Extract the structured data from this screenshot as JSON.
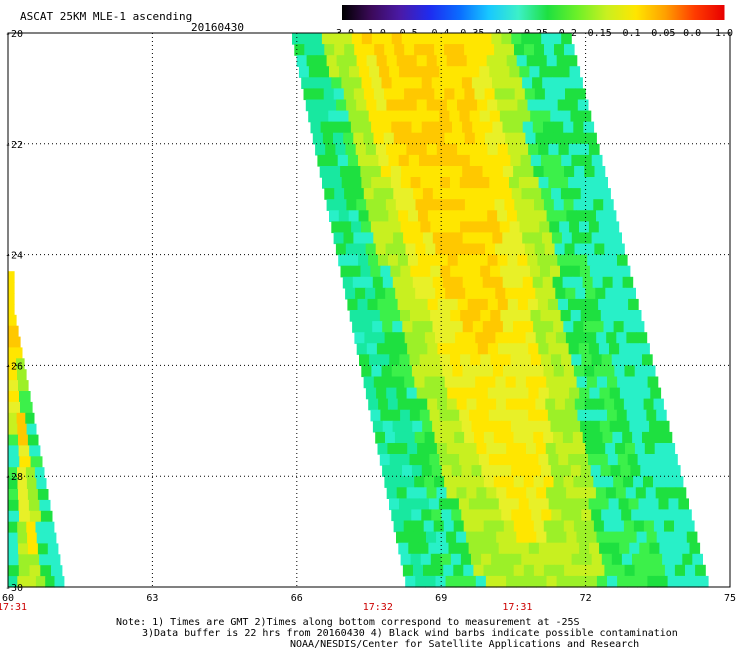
{
  "header": {
    "title": "ASCAT 25KM MLE-1 ascending",
    "date": "20160430"
  },
  "colorbar": {
    "labels": [
      "-3.0",
      "-1.0",
      "-0.5",
      "-0.4",
      "-0.35",
      "-0.3",
      "-0.25",
      "-0.2",
      "-0.15",
      "-0.1",
      "-0.05",
      "0.0",
      "1.0"
    ],
    "colors": [
      "#000000",
      "#3c0a5a",
      "#4a1aa8",
      "#1e2cf0",
      "#0a6cff",
      "#18c8ff",
      "#3cf0c8",
      "#1ee040",
      "#6cf028",
      "#c8f020",
      "#ffe600",
      "#ffa000",
      "#ff3c00",
      "#e80000"
    ]
  },
  "map": {
    "lon_range": [
      60,
      75
    ],
    "lat_range": [
      -20,
      -30
    ],
    "x_ticks": [
      "60",
      "63",
      "66",
      "69",
      "72",
      "75"
    ],
    "y_ticks": [
      "-20",
      "-22",
      "-24",
      "-26",
      "-28",
      "-30"
    ],
    "grid": "dotted",
    "swaths": [
      {
        "name": "west",
        "time": "17:31",
        "top_lat": -24.3,
        "bottom_lat": -30,
        "left_lon_top": 60.0,
        "right_lon_top": 60.0,
        "left_lon_bottom": 60.0,
        "right_lon_bottom": 61.2
      },
      {
        "name": "main",
        "top_lat": -20,
        "bottom_lat": -30,
        "left_lon_top": 65.9,
        "right_lon_top": 71.7,
        "left_lon_bottom": 68.3,
        "right_lon_bottom": 74.6
      }
    ],
    "pass_times": [
      {
        "label": "17:31",
        "lon": 60.0
      },
      {
        "label": "17:32",
        "lon": 67.6
      },
      {
        "label": "17:31",
        "lon": 70.5
      }
    ]
  },
  "notes": {
    "line1": "Note: 1) Times are GMT 2)Times along bottom correspond to measurement at -25S",
    "line2": "3)Data buffer is 22 hrs from 20160430 4) Black wind barbs indicate possible contamination",
    "line3": "NOAA/NESDIS/Center for Satellite Applications and Research"
  }
}
